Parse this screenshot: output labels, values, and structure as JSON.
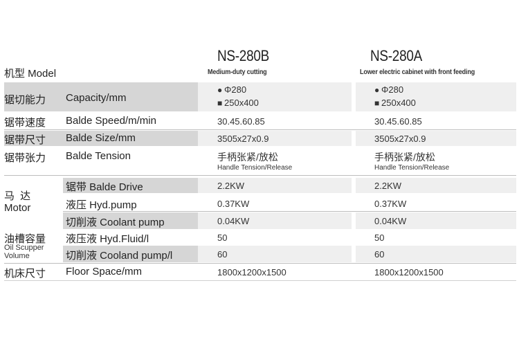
{
  "model_label": "机型 Model",
  "models": [
    {
      "name": "NS-280B",
      "subtitle": "Medium-duty cutting",
      "capacity_round": "Φ280",
      "capacity_rect": "250x400",
      "speed": "30.45.60.85",
      "size": "3505x27x0.9",
      "tension_cn": "手柄张紧/放松",
      "tension_en": "Handle Tension/Release",
      "drive": "2.2KW",
      "pump": "0.37KW",
      "coolant": "0.04KW",
      "fluid": "50",
      "cooland": "60",
      "floor": "1800x1200x1500"
    },
    {
      "name": "NS-280A",
      "subtitle": "Lower electric cabinet with front feeding",
      "capacity_round": "Φ280",
      "capacity_rect": "250x400",
      "speed": "30.45.60.85",
      "size": "3505x27x0.9",
      "tension_cn": "手柄张紧/放松",
      "tension_en": "Handle Tension/Release",
      "drive": "2.2KW",
      "pump": "0.37KW",
      "coolant": "0.04KW",
      "fluid": "50",
      "cooland": "60",
      "floor": "1800x1200x1500"
    }
  ],
  "labels": {
    "capacity_cn": "锯切能力",
    "capacity_en": "Capacity/mm",
    "speed_cn": "锯带速度",
    "speed_en": "Balde Speed/m/min",
    "size_cn": "锯带尺寸",
    "size_en": "Balde Size/mm",
    "tension_cn": "锯带张力",
    "tension_en": "Balde Tension",
    "motor_cn": "马 达",
    "motor_en": "Motor",
    "drive": "锯带 Balde Drive",
    "pump": "液压 Hyd.pump",
    "coolant": "切削液 Coolant pump",
    "oil_cn": "油槽容量",
    "oil_en1": "Oil Scupper",
    "oil_en2": "Volume",
    "fluid": "液压液 Hyd.Fluid/l",
    "cooland": "切削液 Cooland pump/l",
    "floor_cn": "机床尺寸",
    "floor_en": "Floor Space/mm"
  },
  "icons": {
    "round": "filled-circle-icon",
    "rect": "filled-square-icon"
  },
  "colors": {
    "gray_band": "#d6d6d6",
    "light_band": "#efefef",
    "text": "#2a2a2a"
  }
}
